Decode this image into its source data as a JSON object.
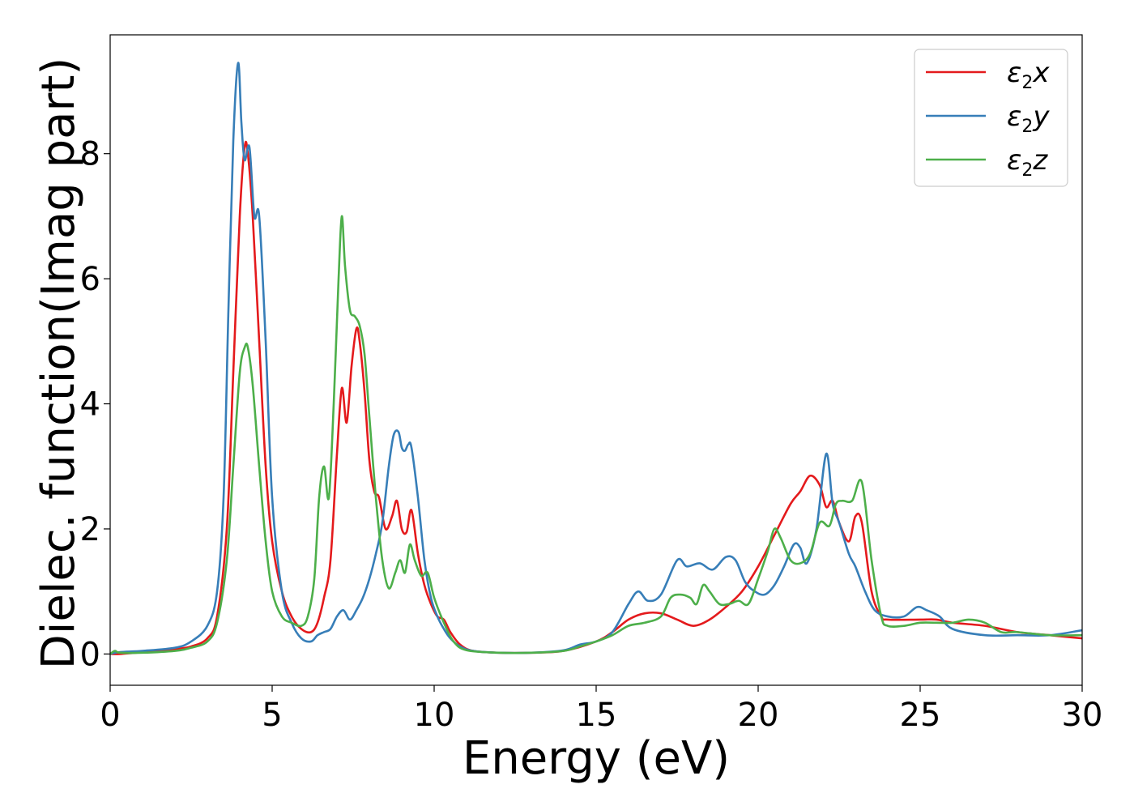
{
  "chart_data": {
    "type": "line",
    "xlabel": "Energy (eV)",
    "ylabel": "Dielec. function(Imag part)",
    "xlim": [
      0,
      30
    ],
    "ylim": [
      -0.5,
      9.9
    ],
    "xticks": [
      0,
      5,
      10,
      15,
      20,
      25,
      30
    ],
    "yticks": [
      0,
      2,
      4,
      6,
      8
    ],
    "legend_position": "top-right",
    "grid": false,
    "series": [
      {
        "name": "ε2x",
        "legend": {
          "base": "ε",
          "sub": "2",
          "suffix": "x"
        },
        "color": "#e41a1c",
        "x": [
          0,
          0.3,
          1,
          2,
          2.5,
          3.0,
          3.3,
          3.6,
          3.8,
          4.0,
          4.15,
          4.25,
          4.4,
          4.6,
          4.8,
          5.0,
          5.3,
          5.6,
          5.9,
          6.2,
          6.4,
          6.6,
          6.8,
          7.0,
          7.15,
          7.3,
          7.45,
          7.6,
          7.7,
          7.85,
          8.0,
          8.15,
          8.3,
          8.5,
          8.7,
          8.85,
          9.0,
          9.15,
          9.3,
          9.5,
          9.7,
          9.9,
          10.1,
          10.3,
          10.5,
          10.8,
          11.2,
          12,
          13,
          14,
          15,
          15.5,
          16,
          16.5,
          17,
          17.5,
          18,
          18.5,
          19,
          19.5,
          20,
          20.5,
          21,
          21.3,
          21.6,
          21.9,
          22.1,
          22.3,
          22.5,
          22.8,
          23.0,
          23.2,
          23.5,
          23.8,
          24,
          25,
          25.5,
          26,
          27,
          28,
          29,
          30
        ],
        "y": [
          0.0,
          0.0,
          0.03,
          0.08,
          0.12,
          0.25,
          0.6,
          2.0,
          4.5,
          7.0,
          8.1,
          8.0,
          7.0,
          5.0,
          3.0,
          1.8,
          1.0,
          0.6,
          0.4,
          0.35,
          0.5,
          0.9,
          1.5,
          3.2,
          4.25,
          3.7,
          4.6,
          5.2,
          5.0,
          4.2,
          3.1,
          2.6,
          2.5,
          2.0,
          2.2,
          2.45,
          2.0,
          1.95,
          2.3,
          1.6,
          1.1,
          0.8,
          0.6,
          0.55,
          0.35,
          0.15,
          0.05,
          0.02,
          0.02,
          0.05,
          0.2,
          0.35,
          0.55,
          0.65,
          0.65,
          0.55,
          0.45,
          0.55,
          0.75,
          1.0,
          1.4,
          1.9,
          2.4,
          2.6,
          2.85,
          2.7,
          2.35,
          2.45,
          2.1,
          1.8,
          2.2,
          2.1,
          1.0,
          0.6,
          0.55,
          0.55,
          0.55,
          0.5,
          0.45,
          0.35,
          0.3,
          0.25
        ]
      },
      {
        "name": "ε2y",
        "legend": {
          "base": "ε",
          "sub": "2",
          "suffix": "y"
        },
        "color": "#377eb8",
        "x": [
          0,
          0.3,
          1,
          2,
          2.5,
          3.0,
          3.3,
          3.5,
          3.65,
          3.8,
          3.95,
          4.05,
          4.15,
          4.3,
          4.45,
          4.6,
          4.8,
          5.0,
          5.3,
          5.6,
          5.9,
          6.2,
          6.4,
          6.6,
          6.8,
          7.0,
          7.2,
          7.4,
          7.6,
          7.8,
          8.0,
          8.2,
          8.4,
          8.6,
          8.75,
          8.9,
          9.0,
          9.1,
          9.2,
          9.3,
          9.5,
          9.7,
          9.9,
          10.1,
          10.3,
          10.5,
          10.8,
          11.2,
          12,
          13,
          14,
          14.5,
          15,
          15.5,
          16,
          16.3,
          16.6,
          17,
          17.5,
          17.8,
          18.2,
          18.6,
          19.0,
          19.3,
          19.6,
          19.9,
          20.2,
          20.5,
          20.8,
          21.1,
          21.3,
          21.5,
          21.8,
          22.1,
          22.3,
          22.5,
          22.8,
          23.0,
          23.3,
          23.6,
          24,
          24.5,
          24.9,
          25.2,
          25.6,
          26,
          27,
          28,
          29,
          30
        ],
        "y": [
          0.0,
          0.03,
          0.05,
          0.1,
          0.2,
          0.45,
          1.0,
          2.5,
          5.5,
          8.2,
          9.45,
          8.5,
          7.9,
          8.1,
          7.0,
          7.0,
          5.0,
          2.5,
          1.0,
          0.5,
          0.25,
          0.2,
          0.3,
          0.35,
          0.4,
          0.6,
          0.7,
          0.55,
          0.7,
          0.9,
          1.2,
          1.6,
          2.1,
          3.0,
          3.5,
          3.55,
          3.3,
          3.25,
          3.35,
          3.3,
          2.5,
          1.5,
          0.9,
          0.6,
          0.4,
          0.25,
          0.12,
          0.05,
          0.02,
          0.02,
          0.06,
          0.15,
          0.2,
          0.35,
          0.8,
          1.0,
          0.85,
          0.95,
          1.5,
          1.4,
          1.45,
          1.35,
          1.55,
          1.5,
          1.15,
          1.0,
          0.95,
          1.1,
          1.4,
          1.75,
          1.7,
          1.45,
          2.0,
          3.2,
          2.4,
          2.1,
          1.6,
          1.4,
          1.0,
          0.7,
          0.6,
          0.6,
          0.75,
          0.7,
          0.6,
          0.4,
          0.3,
          0.3,
          0.3,
          0.38
        ]
      },
      {
        "name": "ε2z",
        "legend": {
          "base": "ε",
          "sub": "2",
          "suffix": "z"
        },
        "color": "#4daf4a",
        "x": [
          0,
          0.15,
          0.3,
          1,
          2,
          2.5,
          3.0,
          3.3,
          3.6,
          3.8,
          4.0,
          4.15,
          4.25,
          4.4,
          4.6,
          4.8,
          5.0,
          5.3,
          5.6,
          5.9,
          6.1,
          6.3,
          6.45,
          6.6,
          6.75,
          6.9,
          7.05,
          7.15,
          7.25,
          7.4,
          7.55,
          7.7,
          7.85,
          8.0,
          8.2,
          8.4,
          8.6,
          8.8,
          8.95,
          9.1,
          9.25,
          9.4,
          9.6,
          9.8,
          10.0,
          10.3,
          10.6,
          11.0,
          12,
          13,
          14,
          14.5,
          15,
          15.5,
          16,
          16.5,
          17,
          17.3,
          17.6,
          17.9,
          18.1,
          18.3,
          18.5,
          18.8,
          19.1,
          19.4,
          19.7,
          20.0,
          20.3,
          20.5,
          20.7,
          21.0,
          21.3,
          21.6,
          21.9,
          22.2,
          22.4,
          22.6,
          22.9,
          23.2,
          23.5,
          23.8,
          24,
          24.5,
          25,
          25.5,
          26,
          26.5,
          27,
          27.5,
          28,
          29,
          30
        ],
        "y": [
          0.0,
          0.05,
          0.02,
          0.02,
          0.05,
          0.1,
          0.2,
          0.5,
          1.5,
          3.0,
          4.5,
          4.9,
          4.9,
          4.3,
          3.0,
          1.8,
          1.0,
          0.6,
          0.5,
          0.45,
          0.6,
          1.2,
          2.5,
          3.0,
          2.5,
          4.0,
          6.0,
          7.0,
          6.2,
          5.5,
          5.4,
          5.25,
          4.8,
          3.8,
          2.5,
          1.5,
          1.05,
          1.3,
          1.5,
          1.3,
          1.75,
          1.5,
          1.25,
          1.3,
          0.9,
          0.5,
          0.2,
          0.06,
          0.02,
          0.02,
          0.05,
          0.12,
          0.2,
          0.3,
          0.45,
          0.5,
          0.6,
          0.9,
          0.95,
          0.9,
          0.8,
          1.1,
          1.0,
          0.8,
          0.8,
          0.85,
          0.8,
          1.2,
          1.65,
          2.0,
          1.85,
          1.5,
          1.45,
          1.6,
          2.1,
          2.05,
          2.4,
          2.45,
          2.45,
          2.75,
          1.5,
          0.6,
          0.45,
          0.45,
          0.5,
          0.5,
          0.5,
          0.55,
          0.5,
          0.35,
          0.35,
          0.3,
          0.3
        ]
      }
    ]
  }
}
